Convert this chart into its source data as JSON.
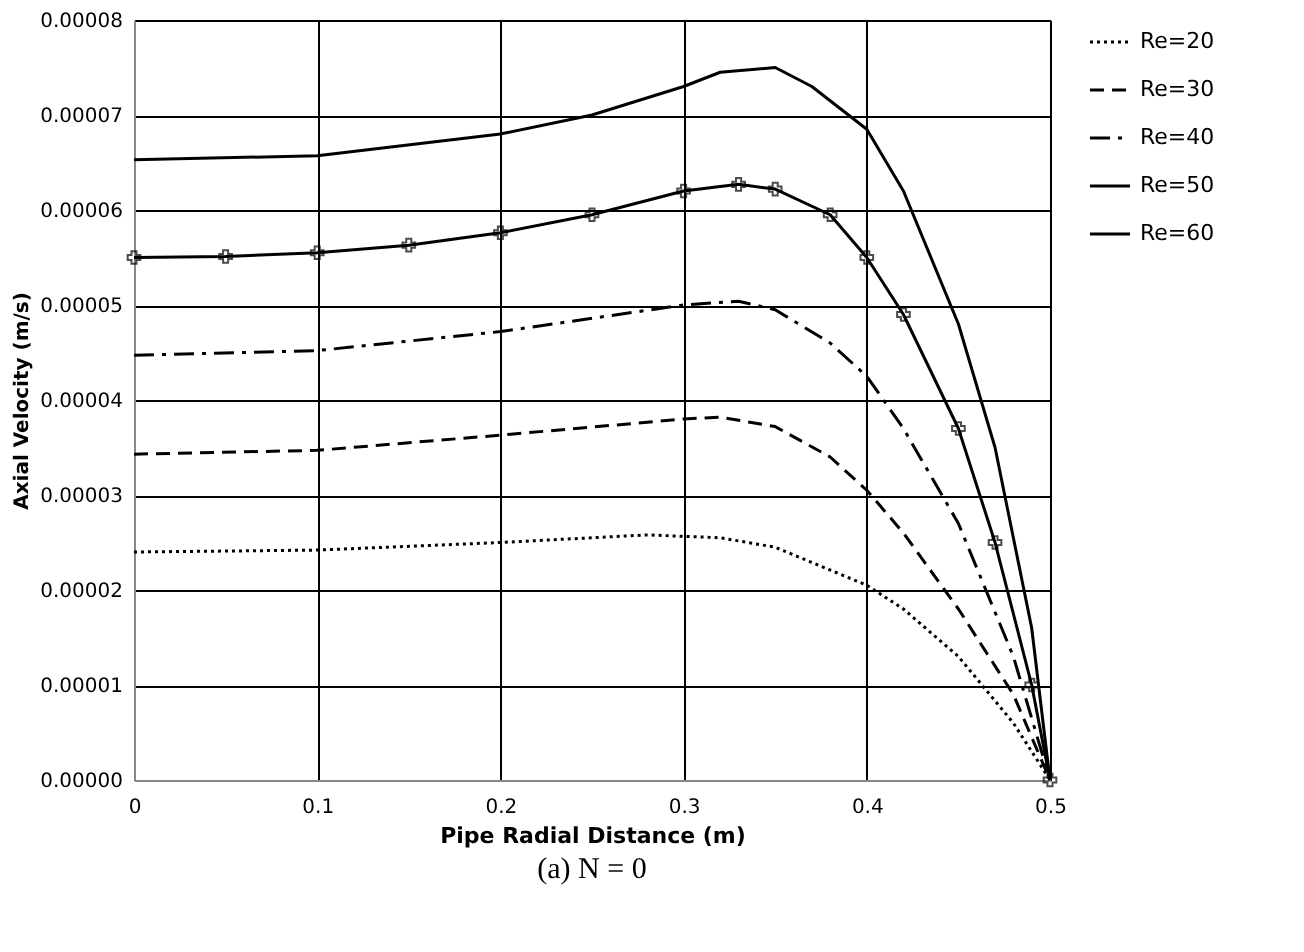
{
  "chart_data": {
    "type": "line",
    "xlabel": "Pipe Radial Distance (m)",
    "ylabel": "Axial Velocity (m/s)",
    "annotations": [
      "(a) N = 0"
    ],
    "xlim": [
      0,
      0.5
    ],
    "xticks": [
      0,
      0.1,
      0.2,
      0.3,
      0.4,
      0.5
    ],
    "ylim": [
      0,
      8e-05
    ],
    "yticks": [
      {
        "value": 0,
        "label": "0.00000"
      },
      {
        "value": 1e-05,
        "label": "0.00001"
      },
      {
        "value": 2e-05,
        "label": "0.00002"
      },
      {
        "value": 3e-05,
        "label": "0.00003"
      },
      {
        "value": 4e-05,
        "label": "0.00004"
      },
      {
        "value": 5e-05,
        "label": "0.00005"
      },
      {
        "value": 6e-05,
        "label": "0.00006"
      },
      {
        "value": 7e-05,
        "label": "0.00007"
      },
      {
        "value": 8e-05,
        "label": "0.00008"
      }
    ],
    "grid": true,
    "legend": "right",
    "marker": "none",
    "series": [
      {
        "name": "Re=20",
        "color": "#000000",
        "line_style": "dotted",
        "x": [
          0,
          0.1,
          0.2,
          0.28,
          0.32,
          0.35,
          0.4,
          0.42,
          0.45,
          0.48,
          0.5
        ],
        "values": [
          2.4e-05,
          2.42e-05,
          2.5e-05,
          2.58e-05,
          2.55e-05,
          2.45e-05,
          2.05e-05,
          1.8e-05,
          1.3e-05,
          6e-06,
          0
        ]
      },
      {
        "name": "Re=30",
        "color": "#000000",
        "line_style": "dashed",
        "x": [
          0,
          0.1,
          0.2,
          0.3,
          0.32,
          0.35,
          0.38,
          0.4,
          0.42,
          0.45,
          0.48,
          0.5
        ],
        "values": [
          3.43e-05,
          3.47e-05,
          3.63e-05,
          3.8e-05,
          3.82e-05,
          3.72e-05,
          3.4e-05,
          3.05e-05,
          2.6e-05,
          1.8e-05,
          9e-06,
          0
        ]
      },
      {
        "name": "Re=40",
        "color": "#000000",
        "line_style": "dashdot",
        "x": [
          0,
          0.1,
          0.2,
          0.3,
          0.33,
          0.35,
          0.38,
          0.4,
          0.42,
          0.45,
          0.48,
          0.5
        ],
        "values": [
          4.47e-05,
          4.52e-05,
          4.72e-05,
          5e-05,
          5.04e-05,
          4.95e-05,
          4.6e-05,
          4.25e-05,
          3.7e-05,
          2.7e-05,
          1.3e-05,
          0
        ]
      },
      {
        "name": "Re=50",
        "color": "#000000",
        "line_style": "solid",
        "marker": "cross",
        "x": [
          0,
          0.05,
          0.1,
          0.15,
          0.2,
          0.25,
          0.3,
          0.33,
          0.35,
          0.38,
          0.4,
          0.42,
          0.45,
          0.47,
          0.49,
          0.5
        ],
        "values": [
          5.5e-05,
          5.51e-05,
          5.55e-05,
          5.63e-05,
          5.76e-05,
          5.95e-05,
          6.2e-05,
          6.27e-05,
          6.22e-05,
          5.95e-05,
          5.5e-05,
          4.9e-05,
          3.7e-05,
          2.5e-05,
          1e-05,
          0
        ]
      },
      {
        "name": "Re=60",
        "color": "#000000",
        "line_style": "solid",
        "x": [
          0,
          0.1,
          0.2,
          0.25,
          0.3,
          0.32,
          0.35,
          0.37,
          0.4,
          0.42,
          0.45,
          0.47,
          0.49,
          0.5
        ],
        "values": [
          6.53e-05,
          6.57e-05,
          6.8e-05,
          7e-05,
          7.3e-05,
          7.45e-05,
          7.5e-05,
          7.3e-05,
          6.85e-05,
          6.2e-05,
          4.8e-05,
          3.5e-05,
          1.6e-05,
          0
        ]
      }
    ]
  }
}
